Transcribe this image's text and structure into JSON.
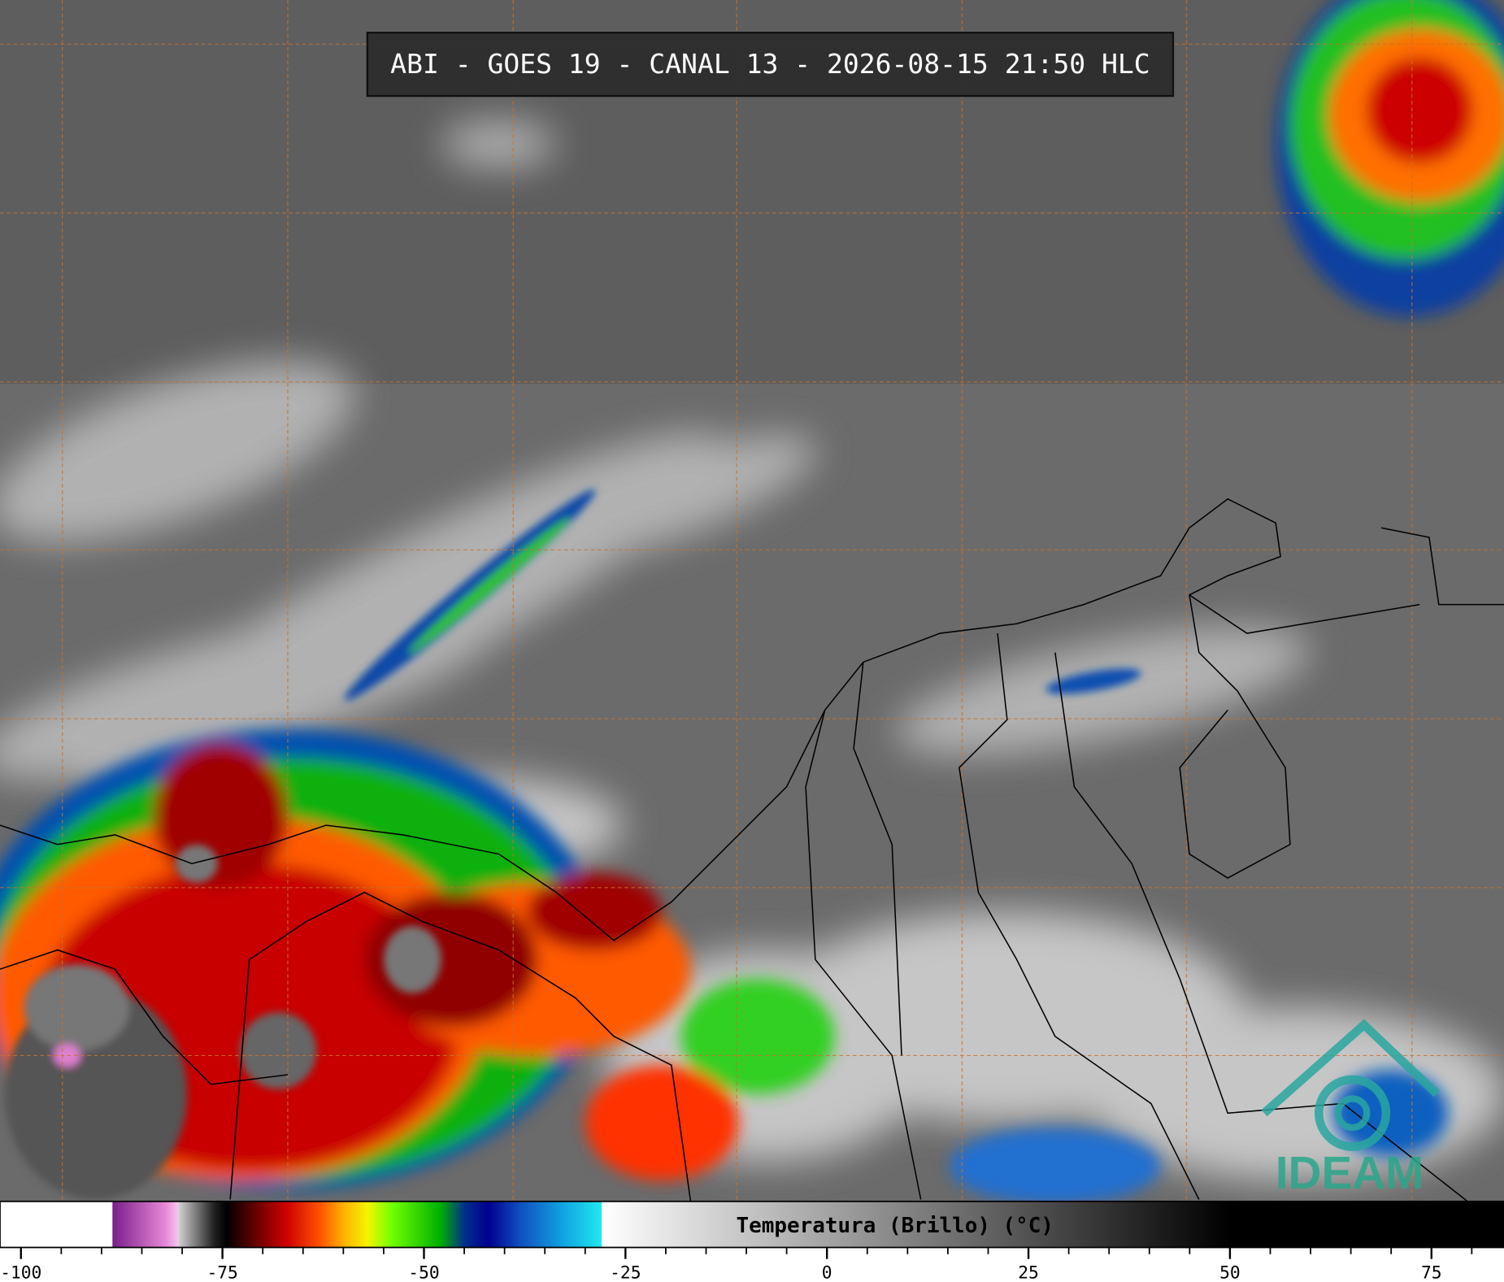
{
  "header": {
    "title": "ABI - GOES 19 - CANAL 13 - 2026-08-15 21:50 HLC"
  },
  "colorbar": {
    "label": "Temperatura (Brillo) (°C)",
    "xlim": [
      -102.6,
      84
    ],
    "xticks": [
      -100,
      -75,
      -50,
      -25,
      0,
      25,
      50,
      75
    ],
    "minor_xticks": [
      -95,
      -90,
      -85,
      -80,
      -70,
      -65,
      -60,
      -55,
      -45,
      -40,
      -35,
      -30,
      -20,
      -15,
      -10,
      -5,
      5,
      10,
      15,
      20,
      30,
      35,
      40,
      45,
      55,
      60,
      65,
      70,
      80
    ],
    "colorscale": [
      [
        -102.6,
        "#ffffff"
      ],
      [
        -88.7,
        "#ffffff"
      ],
      [
        -88.6,
        "#7a1f8a"
      ],
      [
        -82,
        "#e88ad8"
      ],
      [
        -80.5,
        "#f2c6ee"
      ],
      [
        -80.4,
        "#d0d0d0"
      ],
      [
        -76,
        "#202020"
      ],
      [
        -74.5,
        "#000000"
      ],
      [
        -72,
        "#4a0000"
      ],
      [
        -67,
        "#d00000"
      ],
      [
        -63,
        "#ff5000"
      ],
      [
        -60,
        "#ffb000"
      ],
      [
        -57,
        "#f5f500"
      ],
      [
        -54,
        "#70ff00"
      ],
      [
        -48,
        "#00b000"
      ],
      [
        -45,
        "#00308a"
      ],
      [
        -42,
        "#000090"
      ],
      [
        -38,
        "#1050c0"
      ],
      [
        -33,
        "#10a0e0"
      ],
      [
        -28,
        "#20e8f0"
      ],
      [
        -27.9,
        "#ffffff"
      ],
      [
        50,
        "#000000"
      ],
      [
        84,
        "#000000"
      ]
    ]
  },
  "logo": {
    "text": "IDEAM"
  }
}
